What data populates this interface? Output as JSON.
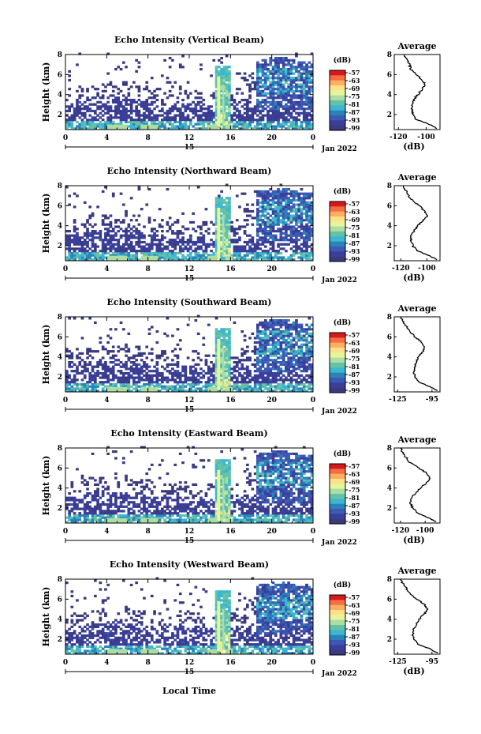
{
  "figure": {
    "xlabel": "Local Time",
    "date_label": "Jan 2022",
    "day_label": "15",
    "colorbar_unit": "(dB)",
    "colorbar_ticks": [
      "-57",
      "-63",
      "-69",
      "-75",
      "-81",
      "-87",
      "-93",
      "-99"
    ],
    "colorbar_colors": [
      "#d7191c",
      "#f46d43",
      "#fdae61",
      "#fee08b",
      "#e6f598",
      "#abdda4",
      "#66c2a5",
      "#3bb7d1",
      "#2b83ba",
      "#3c5ab4",
      "#3b3f9a",
      "#3a3a80"
    ]
  },
  "chart_data": [
    {
      "type": "heatmap",
      "title": "Echo Intensity (Vertical Beam)",
      "ylabel": "Height (km)",
      "xlim": [
        0,
        24
      ],
      "ylim": [
        0.5,
        8
      ],
      "x_ticks": [
        "0",
        "4",
        "8",
        "12",
        "16",
        "20",
        "0"
      ],
      "y_ticks": [
        "2",
        "4",
        "6",
        "8"
      ],
      "profile": {
        "title": "Average",
        "xlabel": "(dB)",
        "x_ticks": [
          "-120",
          "-100"
        ],
        "xlim": [
          -123,
          -90
        ],
        "y_ticks": [
          "2",
          "4",
          "6",
          "8"
        ],
        "height": [
          0.6,
          1.0,
          1.5,
          2.0,
          2.5,
          3.0,
          3.5,
          4.0,
          4.5,
          5.0,
          5.5,
          6.0,
          6.5,
          7.0,
          7.5,
          8.0
        ],
        "value": [
          -92,
          -97,
          -107,
          -110,
          -110,
          -110,
          -109,
          -106,
          -103,
          -101,
          -103,
          -107,
          -111,
          -112,
          -114,
          -116
        ]
      }
    },
    {
      "type": "heatmap",
      "title": "Echo Intensity (Northward Beam)",
      "ylabel": "Height (km)",
      "xlim": [
        0,
        24
      ],
      "ylim": [
        0.5,
        8
      ],
      "x_ticks": [
        "0",
        "4",
        "8",
        "12",
        "16",
        "20",
        "0"
      ],
      "y_ticks": [
        "2",
        "4",
        "6",
        "8"
      ],
      "profile": {
        "title": "Average",
        "xlabel": "(dB)",
        "x_ticks": [
          "-120",
          "-100"
        ],
        "xlim": [
          -125,
          -90
        ],
        "y_ticks": [
          "2",
          "4",
          "6",
          "8"
        ],
        "height": [
          0.6,
          1.0,
          1.5,
          2.0,
          2.5,
          3.0,
          3.5,
          4.0,
          4.5,
          5.0,
          5.5,
          6.0,
          6.5,
          7.0,
          7.5,
          8.0
        ],
        "value": [
          -92,
          -98,
          -107,
          -111,
          -112,
          -112,
          -110,
          -107,
          -103,
          -100,
          -102,
          -106,
          -111,
          -114,
          -116,
          -118
        ]
      }
    },
    {
      "type": "heatmap",
      "title": "Echo Intensity (Southward Beam)",
      "ylabel": "Height (km)",
      "xlim": [
        0,
        24
      ],
      "ylim": [
        0.5,
        8
      ],
      "x_ticks": [
        "0",
        "4",
        "8",
        "12",
        "16",
        "20",
        "0"
      ],
      "y_ticks": [
        "2",
        "4",
        "6",
        "8"
      ],
      "profile": {
        "title": "Average",
        "xlabel": "",
        "x_ticks": [
          "-125",
          "-95"
        ],
        "xlim": [
          -128,
          -88
        ],
        "y_ticks": [
          "2",
          "4",
          "6",
          "8"
        ],
        "height": [
          0.6,
          1.0,
          1.5,
          2.0,
          2.5,
          3.0,
          3.5,
          4.0,
          4.5,
          5.0,
          5.5,
          6.0,
          6.5,
          7.0,
          7.5,
          8.0
        ],
        "value": [
          -90,
          -96,
          -107,
          -110,
          -111,
          -110,
          -109,
          -107,
          -103,
          -101,
          -104,
          -110,
          -114,
          -117,
          -120,
          -122
        ]
      }
    },
    {
      "type": "heatmap",
      "title": "Echo Intensity (Eastward Beam)",
      "ylabel": "Height (km)",
      "xlim": [
        0,
        24
      ],
      "ylim": [
        0.5,
        8
      ],
      "x_ticks": [
        "0",
        "4",
        "8",
        "12",
        "16",
        "20",
        "0"
      ],
      "y_ticks": [
        "2",
        "4",
        "6",
        "8"
      ],
      "profile": {
        "title": "Average",
        "xlabel": "(dB)",
        "x_ticks": [
          "-120",
          "-100"
        ],
        "xlim": [
          -125,
          -88
        ],
        "y_ticks": [
          "2",
          "4",
          "6",
          "8"
        ],
        "height": [
          0.6,
          1.0,
          1.5,
          2.0,
          2.5,
          3.0,
          3.5,
          4.0,
          4.5,
          5.0,
          5.5,
          6.0,
          6.5,
          7.0,
          7.5,
          8.0
        ],
        "value": [
          -91,
          -97,
          -106,
          -110,
          -112,
          -111,
          -108,
          -104,
          -99,
          -96,
          -99,
          -105,
          -112,
          -115,
          -118,
          -120
        ]
      }
    },
    {
      "type": "heatmap",
      "title": "Echo Intensity (Westward Beam)",
      "ylabel": "Height (km)",
      "xlim": [
        0,
        24
      ],
      "ylim": [
        0.5,
        8
      ],
      "x_ticks": [
        "0",
        "4",
        "8",
        "12",
        "16",
        "20",
        "0"
      ],
      "y_ticks": [
        "2",
        "4",
        "6",
        "8"
      ],
      "profile": {
        "title": "Average",
        "xlabel": "(dB)",
        "x_ticks": [
          "-125",
          "-95"
        ],
        "xlim": [
          -128,
          -88
        ],
        "y_ticks": [
          "2",
          "4",
          "6",
          "8"
        ],
        "height": [
          0.6,
          1.0,
          1.5,
          2.0,
          2.5,
          3.0,
          3.5,
          4.0,
          4.5,
          5.0,
          5.5,
          6.0,
          6.5,
          7.0,
          7.5,
          8.0
        ],
        "value": [
          -90,
          -96,
          -107,
          -111,
          -112,
          -111,
          -109,
          -106,
          -102,
          -99,
          -102,
          -108,
          -114,
          -117,
          -120,
          -123
        ]
      }
    }
  ]
}
